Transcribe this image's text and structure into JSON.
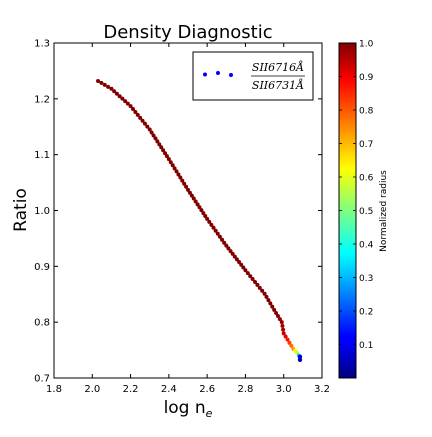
{
  "chart_data": {
    "type": "scatter",
    "title": "Density Diagnostic",
    "xlabel": "log n",
    "xlabel_sub": "e",
    "ylabel": "Ratio",
    "xlim": [
      1.8,
      3.2
    ],
    "ylim": [
      0.7,
      1.3
    ],
    "x_ticks": [
      "1.8",
      "2.0",
      "2.2",
      "2.4",
      "2.6",
      "2.8",
      "3.0",
      "3.2"
    ],
    "y_ticks": [
      "0.7",
      "0.8",
      "0.9",
      "1.0",
      "1.1",
      "1.2",
      "1.3"
    ],
    "grid": false,
    "legend": {
      "placement": "top-right",
      "numerator": "SII6716Å",
      "denominator": "SII6731Å",
      "marker_color": "#0000ff"
    },
    "colorbar": {
      "label": "Normalized radius",
      "colormap": "jet",
      "range": [
        0.0,
        1.0
      ],
      "ticks": [
        "0.1",
        "0.2",
        "0.3",
        "0.4",
        "0.5",
        "0.6",
        "0.7",
        "0.8",
        "0.9",
        "1.0"
      ]
    },
    "anchor_points": [
      {
        "x": 2.03,
        "y": 1.232,
        "r": 1.0
      },
      {
        "x": 2.1,
        "y": 1.218,
        "r": 1.0
      },
      {
        "x": 2.2,
        "y": 1.187,
        "r": 1.0
      },
      {
        "x": 2.3,
        "y": 1.145,
        "r": 1.0
      },
      {
        "x": 2.4,
        "y": 1.092,
        "r": 1.0
      },
      {
        "x": 2.5,
        "y": 1.037,
        "r": 1.0
      },
      {
        "x": 2.6,
        "y": 0.985,
        "r": 1.0
      },
      {
        "x": 2.7,
        "y": 0.937,
        "r": 1.0
      },
      {
        "x": 2.8,
        "y": 0.893,
        "r": 1.0
      },
      {
        "x": 2.9,
        "y": 0.851,
        "r": 1.0
      },
      {
        "x": 2.95,
        "y": 0.822,
        "r": 1.0
      },
      {
        "x": 2.99,
        "y": 0.8,
        "r": 0.98
      },
      {
        "x": 3.0,
        "y": 0.78,
        "r": 0.93
      },
      {
        "x": 3.03,
        "y": 0.763,
        "r": 0.82
      },
      {
        "x": 3.05,
        "y": 0.752,
        "r": 0.72
      },
      {
        "x": 3.07,
        "y": 0.745,
        "r": 0.55
      },
      {
        "x": 3.08,
        "y": 0.74,
        "r": 0.3
      },
      {
        "x": 3.085,
        "y": 0.738,
        "r": 0.1
      }
    ]
  }
}
